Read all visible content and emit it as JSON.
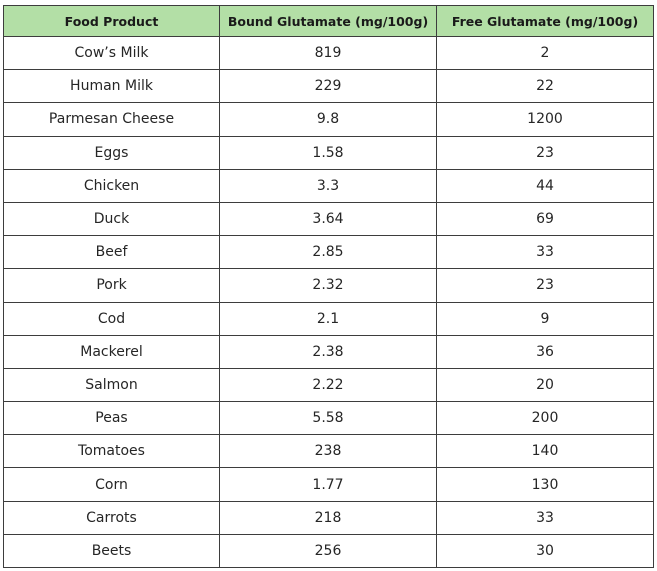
{
  "table": {
    "headers": [
      "Food Product",
      "Bound Glutamate (mg/100g)",
      "Free Glutamate (mg/100g)"
    ],
    "rows": [
      [
        "Cow’s Milk",
        "819",
        "2"
      ],
      [
        "Human Milk",
        "229",
        "22"
      ],
      [
        "Parmesan Cheese",
        "9.8",
        "1200"
      ],
      [
        "Eggs",
        "1.58",
        "23"
      ],
      [
        "Chicken",
        "3.3",
        "44"
      ],
      [
        "Duck",
        "3.64",
        "69"
      ],
      [
        "Beef",
        "2.85",
        "33"
      ],
      [
        "Pork",
        "2.32",
        "23"
      ],
      [
        "Cod",
        "2.1",
        "9"
      ],
      [
        "Mackerel",
        "2.38",
        "36"
      ],
      [
        "Salmon",
        "2.22",
        "20"
      ],
      [
        "Peas",
        "5.58",
        "200"
      ],
      [
        "Tomatoes",
        "238",
        "140"
      ],
      [
        "Corn",
        "1.77",
        "130"
      ],
      [
        "Carrots",
        "218",
        "33"
      ],
      [
        "Beets",
        "256",
        "30"
      ]
    ]
  },
  "colors": {
    "header_background": "#b3dfa6",
    "border": "#3d3d3d"
  }
}
